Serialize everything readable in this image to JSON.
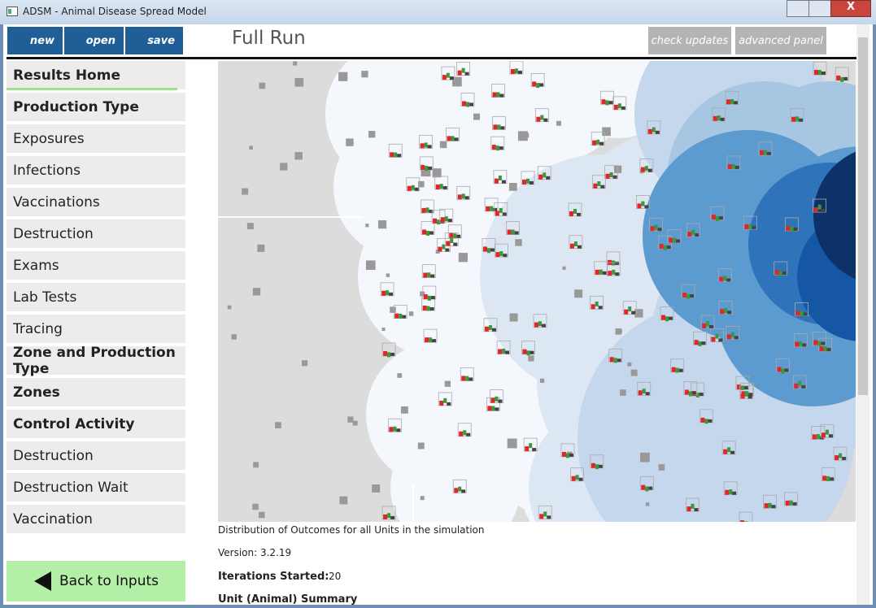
{
  "window": {
    "title": "ADSM - Animal Disease Spread Model"
  },
  "toolbar": {
    "buttons": [
      "new",
      "open",
      "save"
    ],
    "right_buttons": [
      "check updates",
      "advanced panel"
    ]
  },
  "header": {
    "title": "Full Run"
  },
  "nav": [
    {
      "label": "Results Home",
      "bold": true,
      "active": true
    },
    {
      "label": "Production Type",
      "bold": true
    },
    {
      "label": "Exposures"
    },
    {
      "label": "Infections"
    },
    {
      "label": "Vaccinations"
    },
    {
      "label": "Destruction"
    },
    {
      "label": "Exams"
    },
    {
      "label": "Lab Tests"
    },
    {
      "label": "Tracing"
    },
    {
      "label": "Zone and Production Type",
      "bold": true
    },
    {
      "label": "Zones",
      "bold": true
    },
    {
      "label": "Control Activity",
      "bold": true
    },
    {
      "label": "Destruction"
    },
    {
      "label": "Destruction Wait"
    },
    {
      "label": "Vaccination"
    }
  ],
  "back_button": "Back to Inputs",
  "content": {
    "caption": "Distribution of Outcomes for all Units in the simulation",
    "version": "Version: 3.2.19",
    "iterations_label": "Iterations Started:",
    "iterations_value": "20",
    "summary_heading": "Unit (Animal) Summary"
  }
}
